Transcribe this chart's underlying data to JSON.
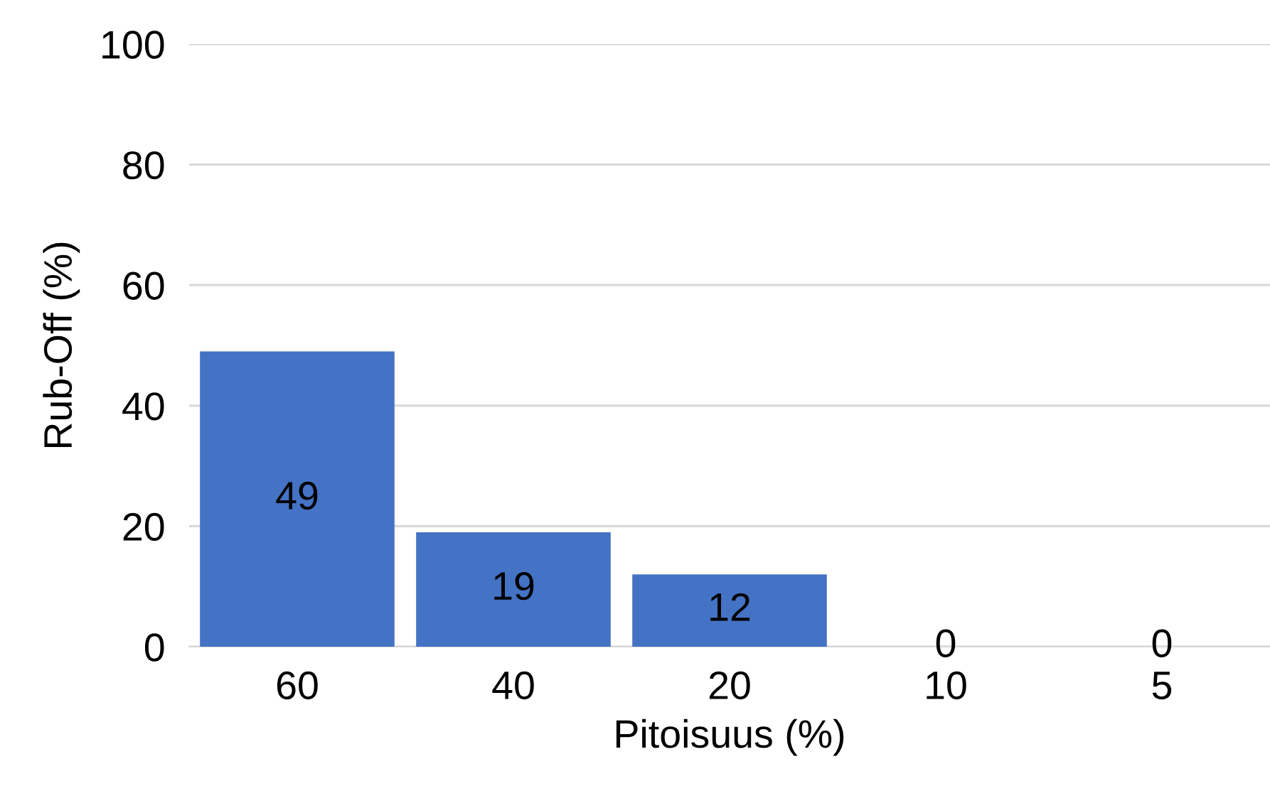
{
  "chart_data": {
    "type": "bar",
    "xlabel": "Pitoisuus (%)",
    "ylabel": "Rub-Off (%)",
    "categories": [
      "60",
      "40",
      "20",
      "10",
      "5"
    ],
    "values": [
      49,
      19,
      12,
      0,
      0
    ],
    "color": "#4472c4",
    "ylim": [
      0,
      100
    ],
    "yticks": [
      0,
      20,
      40,
      60,
      80,
      100
    ],
    "grid": "y",
    "data_labels": true
  }
}
